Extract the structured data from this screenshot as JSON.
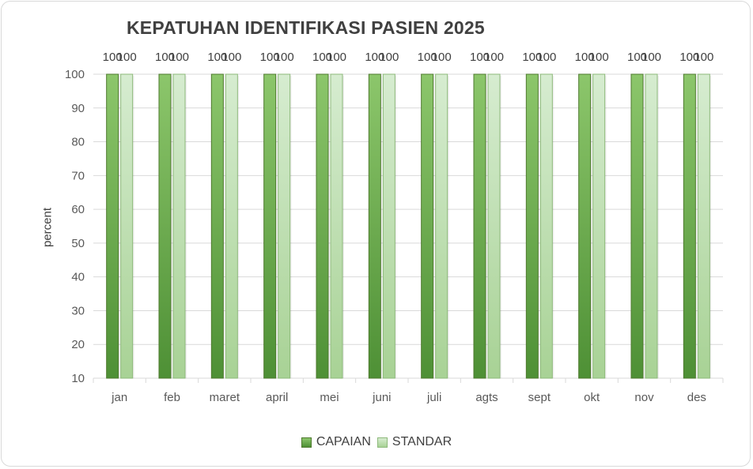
{
  "chart_data": {
    "type": "bar",
    "title": "KEPATUHAN IDENTIFIKASI PASIEN 2025",
    "xlabel": "",
    "ylabel": "percent",
    "categories": [
      "jan",
      "feb",
      "maret",
      "april",
      "mei",
      "juni",
      "juli",
      "agts",
      "sept",
      "okt",
      "nov",
      "des"
    ],
    "series": [
      {
        "name": "CAPAIAN",
        "values": [
          100,
          100,
          100,
          100,
          100,
          100,
          100,
          100,
          100,
          100,
          100,
          100
        ]
      },
      {
        "name": "STANDAR",
        "values": [
          100,
          100,
          100,
          100,
          100,
          100,
          100,
          100,
          100,
          100,
          100,
          100
        ]
      }
    ],
    "ylim": [
      10,
      100
    ],
    "yticks": [
      10,
      20,
      30,
      40,
      50,
      60,
      70,
      80,
      90,
      100
    ],
    "grid": true,
    "legend_position": "bottom",
    "data_labels": true
  },
  "colors": {
    "capaian_top": "#8cc66b",
    "capaian_bottom": "#4e9035",
    "standar_top": "#d6ecd0",
    "standar_bottom": "#a8d295"
  }
}
